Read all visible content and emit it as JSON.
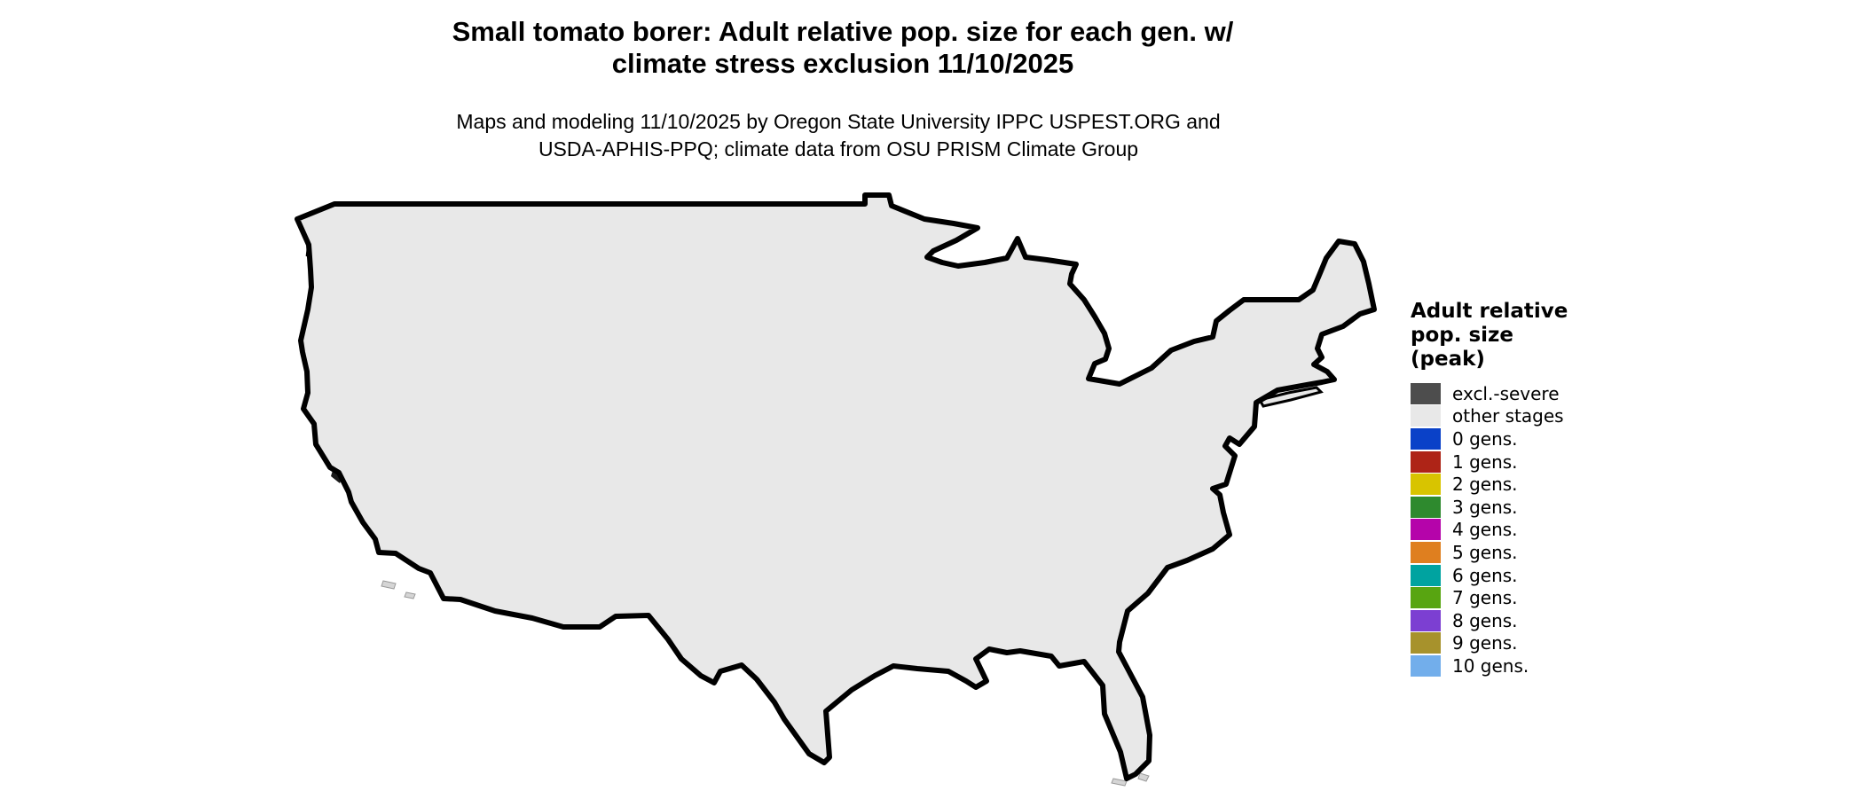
{
  "header": {
    "title_line1": "Small tomato borer: Adult relative pop. size for each gen. w/",
    "title_line2": "climate stress exclusion 11/10/2025",
    "subtitle_line1": "Maps and modeling 11/10/2025 by Oregon State University IPPC USPEST.ORG and",
    "subtitle_line2": "USDA-APHIS-PPQ; climate data from OSU PRISM Climate Group"
  },
  "legend": {
    "title_line1": "Adult relative",
    "title_line2": "pop. size",
    "title_line3": "(peak)",
    "items": [
      {
        "label": "excl.-severe",
        "color_key": "excluded"
      },
      {
        "label": "other stages",
        "color_key": "other"
      },
      {
        "label": "0 gens.",
        "color_key": "gen0"
      },
      {
        "label": "1 gens.",
        "color_key": "gen1"
      },
      {
        "label": "2 gens.",
        "color_key": "gen2"
      },
      {
        "label": "3 gens.",
        "color_key": "gen3"
      },
      {
        "label": "4 gens.",
        "color_key": "gen4"
      },
      {
        "label": "5 gens.",
        "color_key": "gen5"
      },
      {
        "label": "6 gens.",
        "color_key": "gen6"
      },
      {
        "label": "7 gens.",
        "color_key": "gen7"
      },
      {
        "label": "8 gens.",
        "color_key": "gen8"
      },
      {
        "label": "9 gens.",
        "color_key": "gen9"
      },
      {
        "label": "10 gens.",
        "color_key": "gen10"
      }
    ]
  },
  "map": {
    "colors": {
      "excluded": "#4d4d4d",
      "other": "#e8e8e8",
      "gen0": "#0a41c8",
      "gen1": "#ae2417",
      "gen2": "#d8c400",
      "gen3": "#2e8a2e",
      "gen3_light": "#8fcc8f",
      "gen4": "#b504aa",
      "gen5": "#df7f1f",
      "gen6": "#00a3a0",
      "gen7": "#58a511",
      "gen8": "#7c3fd2",
      "gen9": "#a7922c",
      "gen10": "#72aeeb",
      "white_patch": "#fdfdfd",
      "water": "#ffffff",
      "island": "#d5d5d5",
      "dark_dot": "#1a1a1a",
      "border": "#000000"
    }
  }
}
